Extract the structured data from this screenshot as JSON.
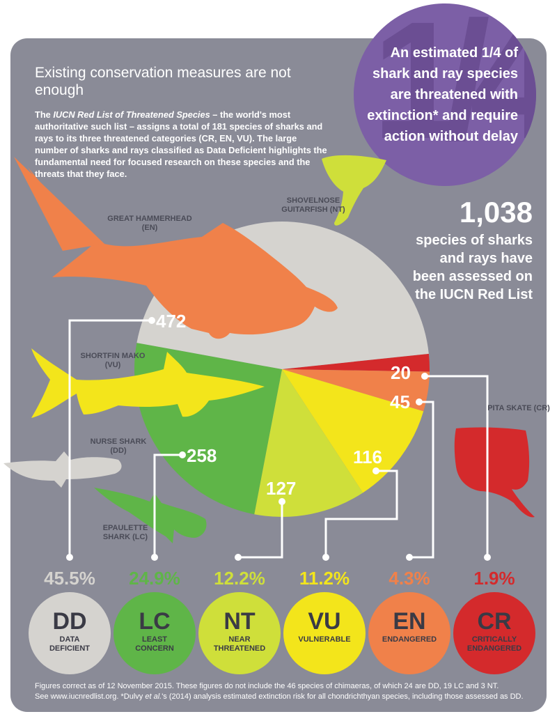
{
  "quarter": {
    "big": "1/4",
    "text": "An estimated 1/4 of shark and ray species are threatened with extinction* and require action without delay"
  },
  "headline": "Existing conservation measures are not enough",
  "intro": {
    "pre": "The ",
    "italic": "IUCN Red List of Threatened Species",
    "post": " – the world's most authoritative such list – assigns a total of 181 species of sharks and rays to its three threatened categories (CR, EN, VU). The large number of sharks and rays classified as Data Deficient highlights the fundamental need for focused research on these species and the threats that they face."
  },
  "assessed": {
    "number": "1,038",
    "text": "species of sharks and rays have been assessed on the IUCN Red List"
  },
  "fish_labels": {
    "hammerhead": "GREAT HAMMERHEAD (EN)",
    "guitarfish": "SHOVELNOSE GUITARFISH (NT)",
    "mako": "SHORTFIN MAKO (VU)",
    "nurse": "NURSE SHARK (DD)",
    "epaulette": "EPAULETTE SHARK (LC)",
    "pita": "PITA SKATE (CR)"
  },
  "colors": {
    "DD": "#d5d3cf",
    "LC": "#5fb548",
    "NT": "#cfdf3a",
    "VU": "#f3e51b",
    "EN": "#f0814a",
    "CR": "#d42a2c",
    "purple": "#7c5fa6",
    "panel": "#8a8b97"
  },
  "chart_data": {
    "type": "pie",
    "categories": [
      "DD",
      "LC",
      "NT",
      "VU",
      "EN",
      "CR"
    ],
    "names": [
      "DATA DEFICIENT",
      "LEAST CONCERN",
      "NEAR THREATENED",
      "VULNERABLE",
      "ENDANGERED",
      "CRITICALLY ENDANGERED"
    ],
    "values": [
      472,
      258,
      127,
      116,
      45,
      20
    ],
    "value_labels": [
      "472",
      "258",
      "127",
      "116",
      "45",
      "20"
    ],
    "percentages": [
      "45.5%",
      "24.9%",
      "12.2%",
      "11.2%",
      "4.3%",
      "1.9%"
    ],
    "total": 1038
  },
  "footnote": {
    "line1": "Figures correct as of 12 November 2015. These figures do not include the 46 species of chimaeras, of which 24 are DD, 19 LC and 3 NT.",
    "line2_pre": "See www.iucnredlist.org. *Dulvy ",
    "line2_italic": "et al.",
    "line2_post": "'s (2014) analysis estimated extinction risk for all chondrichthyan species, including those assessed as DD."
  }
}
